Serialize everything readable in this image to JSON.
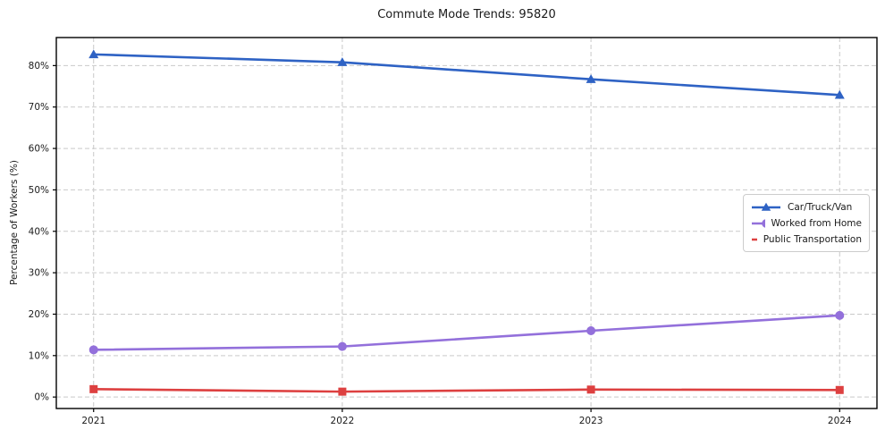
{
  "figure": {
    "title": "Commute Mode Trends: 95820",
    "ylabel": "Percentage of Workers (%)"
  },
  "chart_data": {
    "type": "line",
    "title": "Commute Mode Trends: 95820",
    "xlabel": "",
    "ylabel": "Percentage of Workers (%)",
    "categories": [
      "2021",
      "2022",
      "2023",
      "2024"
    ],
    "x": [
      2021,
      2022,
      2023,
      2024
    ],
    "series": [
      {
        "name": "Car/Truck/Van",
        "values": [
          82.7,
          80.8,
          76.7,
          72.9
        ],
        "color": "#2e62c4",
        "marker": "triangle"
      },
      {
        "name": "Worked from Home",
        "values": [
          11.4,
          12.2,
          16.0,
          19.7
        ],
        "color": "#9370db",
        "marker": "circle"
      },
      {
        "name": "Public Transportation",
        "values": [
          1.9,
          1.3,
          1.8,
          1.7
        ],
        "color": "#dd4040",
        "marker": "square"
      }
    ],
    "y_ticks": [
      0,
      10,
      20,
      30,
      40,
      50,
      60,
      70,
      80
    ],
    "y_tick_labels": [
      "0%",
      "10%",
      "20%",
      "30%",
      "40%",
      "50%",
      "60%",
      "70%",
      "80%"
    ],
    "xlim": [
      2020.85,
      2024.15
    ],
    "ylim": [
      -2.77,
      86.77
    ],
    "grid": true,
    "grid_style": "dashed",
    "legend_position": "center-right",
    "legend": [
      "Car/Truck/Van",
      "Worked from Home",
      "Public Transportation"
    ]
  }
}
